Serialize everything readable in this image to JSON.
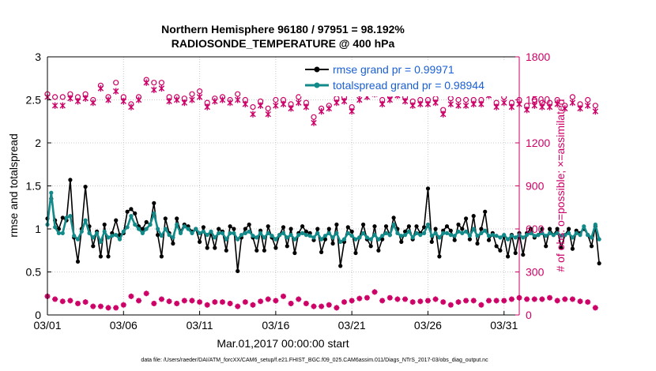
{
  "chart_data": {
    "type": "line",
    "title": "Northern Hemisphere 96180 / 97951 = 98.192%",
    "subtitle": "RADIOSONDE_TEMPERATURE @ 400 hPa",
    "xlabel": "Mar.01,2017 00:00:00 start",
    "ylabel": "rmse and totalspread",
    "y2label": "# of obs: o=possible; ×=assimilated",
    "footer": "data file: /Users/raeder/DAI/ATM_forcXX/CAM6_setup/f.e21.FHIST_BGC.f09_025.CAM6assim.011/Diags_NTrS_2017-03/obs_diag_output.nc",
    "x_range": [
      1,
      32
    ],
    "xticks": [
      1,
      6,
      11,
      16,
      21,
      26,
      31
    ],
    "xticklabels": [
      "03/01",
      "03/06",
      "03/11",
      "03/16",
      "03/21",
      "03/26",
      "03/31"
    ],
    "ylim": [
      0,
      3
    ],
    "yticks": [
      0,
      0.5,
      1,
      1.5,
      2,
      2.5,
      3
    ],
    "yticklabels": [
      "0",
      "0.5",
      "1",
      "1.5",
      "2",
      "2.5",
      "3"
    ],
    "y2lim": [
      0,
      1800
    ],
    "y2ticks": [
      0,
      300,
      600,
      900,
      1200,
      1500,
      1800
    ],
    "y2ticklabels": [
      "0",
      "300",
      "600",
      "900",
      "1200",
      "1500",
      "1800"
    ],
    "legend_position": "top-right",
    "x_start": 1,
    "x_step": 0.25,
    "series": [
      {
        "name": "rmse grand pr = 0.99971",
        "axis": "left",
        "color": "#000000",
        "values": [
          1.12,
          1.35,
          1.1,
          1.0,
          1.13,
          1.1,
          1.57,
          0.9,
          0.62,
          1.0,
          1.49,
          1.03,
          0.8,
          0.97,
          0.68,
          1.05,
          0.68,
          0.95,
          1.1,
          0.93,
          0.95,
          1.2,
          1.23,
          1.18,
          1.03,
          1.0,
          1.08,
          1.05,
          1.3,
          0.93,
          0.68,
          1.12,
          0.95,
          0.83,
          1.12,
          0.97,
          1.05,
          1.03,
          0.97,
          1.0,
          0.85,
          1.02,
          0.78,
          0.95,
          0.78,
          1.0,
          0.97,
          0.75,
          1.03,
          1.0,
          0.51,
          0.9,
          1.0,
          1.05,
          0.9,
          0.75,
          0.98,
          0.75,
          1.03,
          0.9,
          0.78,
          0.93,
          1.02,
          0.8,
          1.0,
          0.72,
          0.95,
          1.03,
          0.97,
          0.95,
          0.87,
          1.0,
          0.73,
          0.88,
          1.0,
          0.83,
          1.05,
          0.57,
          0.85,
          1.02,
          0.97,
          0.72,
          0.9,
          1.05,
          0.88,
          0.8,
          1.03,
          0.75,
          0.88,
          1.03,
          0.93,
          1.13,
          1.0,
          0.85,
          0.97,
          1.03,
          0.88,
          1.03,
          0.95,
          1.02,
          1.47,
          0.85,
          1.0,
          0.68,
          0.98,
          1.03,
          0.98,
          0.87,
          1.05,
          1.0,
          1.12,
          0.88,
          1.15,
          0.83,
          1.0,
          1.2,
          0.87,
          0.95,
          0.8,
          0.75,
          0.92,
          0.68,
          0.93,
          0.72,
          0.95,
          0.7,
          0.95,
          1.0,
          0.9,
          0.93,
          1.0,
          0.8,
          1.0,
          0.93,
          1.0,
          0.78,
          0.93,
          1.0,
          0.77,
          0.98,
          0.95,
          1.0,
          0.93,
          0.8,
          1.03,
          0.6
        ]
      },
      {
        "name": "totalspread grand pr = 0.98944",
        "axis": "left",
        "color": "#138a8a",
        "values": [
          1.05,
          1.42,
          1.02,
          0.95,
          0.95,
          1.13,
          1.15,
          0.92,
          0.88,
          0.97,
          1.1,
          0.95,
          0.9,
          0.95,
          0.85,
          0.97,
          0.9,
          0.92,
          0.93,
          0.88,
          0.97,
          1.02,
          1.15,
          1.05,
          1.0,
          0.95,
          1.0,
          1.05,
          1.18,
          1.0,
          0.92,
          1.0,
          0.93,
          0.9,
          1.05,
          0.95,
          1.03,
          1.0,
          0.95,
          1.0,
          0.95,
          0.97,
          0.93,
          0.97,
          0.9,
          0.95,
          0.95,
          0.88,
          0.95,
          0.95,
          0.88,
          0.93,
          0.95,
          0.97,
          0.92,
          0.9,
          0.95,
          0.9,
          0.95,
          0.92,
          0.88,
          0.93,
          0.95,
          0.9,
          0.93,
          0.88,
          0.93,
          0.95,
          0.93,
          0.92,
          0.9,
          0.95,
          0.88,
          0.92,
          0.95,
          0.9,
          0.95,
          0.85,
          0.88,
          0.95,
          0.92,
          0.88,
          0.9,
          0.95,
          0.9,
          0.88,
          0.93,
          0.88,
          0.92,
          0.95,
          0.93,
          1.05,
          0.95,
          0.92,
          0.93,
          0.97,
          0.9,
          0.95,
          0.93,
          0.95,
          1.05,
          0.92,
          0.95,
          0.9,
          0.95,
          0.95,
          0.93,
          0.92,
          0.97,
          0.95,
          0.97,
          0.92,
          1.0,
          0.92,
          0.95,
          0.98,
          0.92,
          0.93,
          0.92,
          0.9,
          0.93,
          0.88,
          0.92,
          0.9,
          0.93,
          0.9,
          0.93,
          0.95,
          0.92,
          0.93,
          0.95,
          0.92,
          0.95,
          0.93,
          0.95,
          0.92,
          0.93,
          0.95,
          0.9,
          0.95,
          0.93,
          1.03,
          0.93,
          0.9,
          1.05,
          0.88
        ]
      },
      {
        "name": "obs possible",
        "axis": "right",
        "marker": "circle",
        "color": "#cc0066",
        "values": [
          1540,
          1500,
          1520,
          1470,
          1520,
          1500,
          1540,
          1480,
          1520,
          1560,
          1540,
          1470,
          1500,
          1530,
          1600,
          1500,
          1520,
          1540,
          1620,
          1540,
          1520,
          1500,
          1470,
          1540,
          1520,
          1550,
          1640,
          1580,
          1620,
          1600,
          1620,
          1560,
          1520,
          1500,
          1520,
          1540,
          1510,
          1520,
          1540,
          1510,
          1560,
          1540,
          1480,
          1500,
          1510,
          1530,
          1520,
          1470,
          1500,
          1480,
          1540,
          1520,
          1500,
          1480,
          1450,
          1500,
          1490,
          1460,
          1440,
          1470,
          1500,
          1470,
          1500,
          1490,
          1470,
          1500,
          1520,
          1510,
          1480,
          1500,
          1380,
          1430,
          1440,
          1480,
          1460,
          1500,
          1510,
          1500,
          1520,
          1500,
          1450,
          1500,
          1540,
          1550,
          1560,
          1600,
          1610,
          1540,
          1500,
          1510,
          1530,
          1580,
          1580,
          1500,
          1520,
          1510,
          1490,
          1520,
          1500,
          1480,
          1500,
          1480,
          1510,
          1520,
          1430,
          1480,
          1510,
          1510,
          1500,
          1420,
          1500,
          1480,
          1500,
          1550,
          1500,
          1520,
          1560,
          1500,
          1480,
          1510,
          1520,
          1500,
          1480,
          1540,
          1500,
          1520,
          1460,
          1500,
          1500,
          1500,
          1480,
          1520,
          1480,
          1500,
          1500,
          1480,
          1460,
          1500,
          1520,
          1480,
          1470,
          1420,
          1500,
          1520,
          1460,
          1440
        ]
      },
      {
        "name": "obs assimilated",
        "axis": "right",
        "marker": "x",
        "color": "#cc0066",
        "values": [
          1520,
          1490,
          1460,
          1500,
          1460,
          1470,
          1510,
          1440,
          1490,
          1520,
          1510,
          1450,
          1480,
          1500,
          1580,
          1470,
          1500,
          1500,
          1560,
          1510,
          1490,
          1470,
          1450,
          1500,
          1500,
          1520,
          1620,
          1560,
          1570,
          1560,
          1580,
          1530,
          1490,
          1470,
          1500,
          1500,
          1480,
          1490,
          1500,
          1480,
          1520,
          1510,
          1450,
          1480,
          1490,
          1500,
          1500,
          1440,
          1480,
          1460,
          1500,
          1480,
          1470,
          1450,
          1400,
          1460,
          1460,
          1420,
          1400,
          1440,
          1460,
          1450,
          1470,
          1470,
          1440,
          1460,
          1480,
          1480,
          1450,
          1470,
          1340,
          1400,
          1420,
          1450,
          1440,
          1470,
          1480,
          1470,
          1490,
          1470,
          1420,
          1480,
          1500,
          1520,
          1520,
          1540,
          1540,
          1510,
          1470,
          1480,
          1500,
          1540,
          1530,
          1470,
          1490,
          1480,
          1460,
          1490,
          1470,
          1440,
          1470,
          1460,
          1480,
          1480,
          1400,
          1450,
          1470,
          1470,
          1460,
          1390,
          1460,
          1450,
          1470,
          1520,
          1470,
          1490,
          1530,
          1460,
          1450,
          1470,
          1480,
          1460,
          1450,
          1490,
          1470,
          1480,
          1430,
          1470,
          1460,
          1470,
          1450,
          1480,
          1450,
          1460,
          1470,
          1450,
          1440,
          1470,
          1480,
          1450,
          1440,
          1390,
          1460,
          1480,
          1420,
          1420
        ]
      },
      {
        "name": "obs rejected",
        "axis": "right",
        "marker": "cross",
        "color": "#cc0066",
        "values": [
          130,
          120,
          110,
          100,
          95,
          80,
          100,
          90,
          80,
          70,
          90,
          55,
          60,
          50,
          60,
          70,
          50,
          55,
          50,
          60,
          70,
          80,
          130,
          100,
          100,
          85,
          150,
          90,
          80,
          100,
          110,
          100,
          95,
          100,
          80,
          90,
          100,
          110,
          100,
          120,
          90,
          80,
          70,
          80,
          90,
          100,
          90,
          70,
          80,
          70,
          60,
          85,
          90,
          80,
          70,
          100,
          95,
          100,
          110,
          120,
          100,
          90,
          130,
          110,
          80,
          120,
          110,
          100,
          80,
          70,
          60,
          55,
          60,
          80,
          70,
          60,
          50,
          60,
          90,
          120,
          100,
          110,
          115,
          100,
          120,
          130,
          160,
          110,
          100,
          110,
          120,
          100,
          110,
          95,
          110,
          100,
          90,
          110,
          95,
          80,
          100,
          90,
          110,
          100,
          90,
          95,
          70,
          80,
          90,
          100,
          100,
          90,
          100,
          80,
          70,
          90,
          100,
          90,
          100,
          110,
          100,
          90,
          110,
          100,
          120,
          95,
          110,
          100,
          110,
          120,
          110,
          100,
          120,
          110,
          100,
          90,
          110,
          105,
          110,
          100,
          95,
          110,
          90,
          70,
          50,
          20
        ]
      }
    ]
  }
}
